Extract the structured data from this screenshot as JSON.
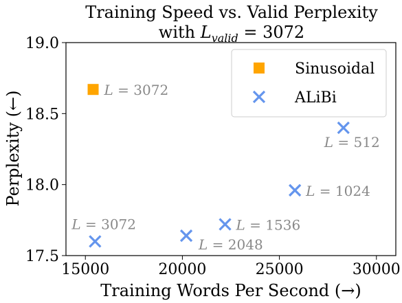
{
  "chart_data": {
    "type": "scatter",
    "title_line1": "Training Speed vs. Valid Perplexity",
    "title_line2_prefix": "with ",
    "title_line2_var": "L",
    "title_line2_sub": "valid",
    "title_line2_suffix": " = 3072",
    "xlabel": "Training Words Per Second (→)",
    "ylabel": "Perplexity (←)",
    "xlim": [
      14000,
      31000
    ],
    "ylim": [
      17.5,
      19.0
    ],
    "xticks": [
      15000,
      20000,
      25000,
      30000
    ],
    "xtick_labels": [
      "15000",
      "20000",
      "25000",
      "30000"
    ],
    "yticks": [
      17.5,
      18.0,
      18.5,
      19.0
    ],
    "ytick_labels": [
      "17.5",
      "18.0",
      "18.5",
      "19.0"
    ],
    "grid": false,
    "legend_position": "top-right",
    "series": [
      {
        "name": "Sinusoidal",
        "marker": "square",
        "color": "#FFA500",
        "points": [
          {
            "x": 15400,
            "y": 18.67,
            "label": "L = 3072"
          }
        ]
      },
      {
        "name": "ALiBi",
        "marker": "x",
        "color": "#6495ED",
        "points": [
          {
            "x": 15500,
            "y": 17.6,
            "label": "L = 3072"
          },
          {
            "x": 20200,
            "y": 17.64,
            "label": "L = 2048"
          },
          {
            "x": 22200,
            "y": 17.72,
            "label": "L = 1536"
          },
          {
            "x": 25800,
            "y": 17.96,
            "label": "L = 1024"
          },
          {
            "x": 28300,
            "y": 18.4,
            "label": "L = 512"
          }
        ]
      }
    ]
  }
}
